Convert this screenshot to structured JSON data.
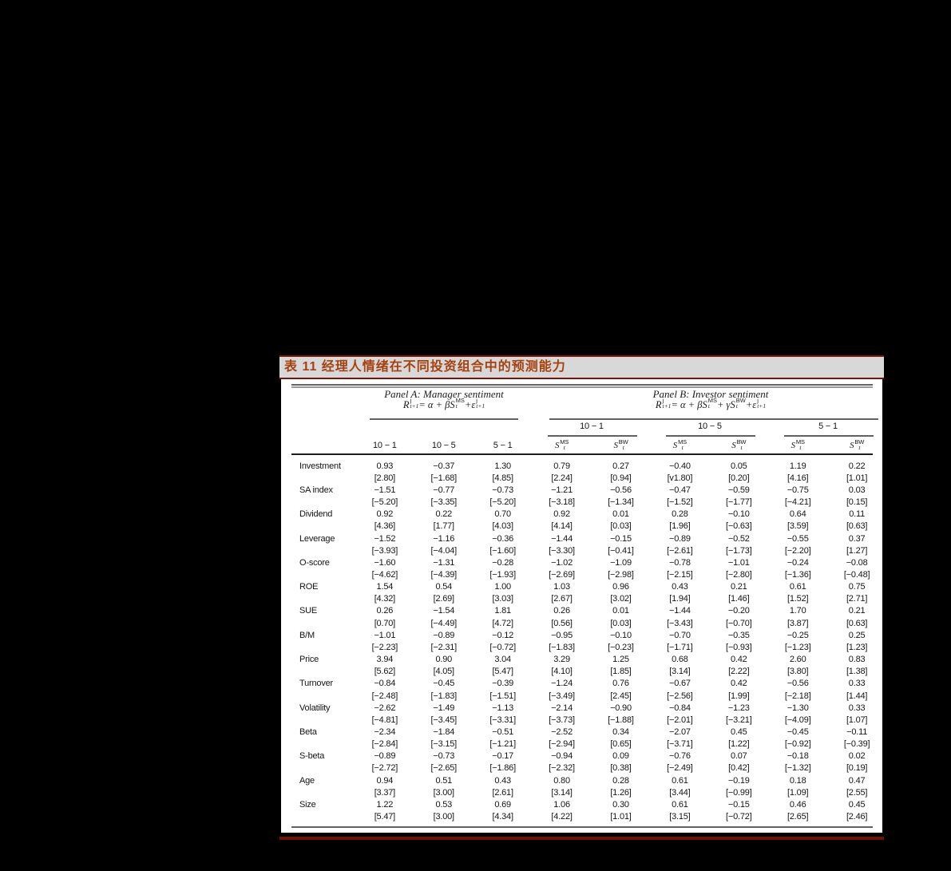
{
  "title_bar": {
    "text": "表 11 经理人情绪在不同投资组合中的预测能力"
  },
  "colors": {
    "page_background": "#000000",
    "title_bar_background": "#d8d8d8",
    "title_text": "#a5400f",
    "accent_red_border": "#7b150b",
    "bottom_bar": "#6e120b"
  },
  "table": {
    "header": {
      "panel_a": {
        "title": "Panel A: Manager sentiment",
        "formula": [
          {
            "base": "R",
            "sup": "j",
            "sub": "t+1"
          },
          {
            "text": " = α + β"
          },
          {
            "base": "S",
            "sup": "MS",
            "sub": "t"
          },
          {
            "text": " + "
          },
          {
            "base": "ε",
            "sup": "j",
            "sub": "t+1"
          }
        ],
        "columns": [
          "10 − 1",
          "10 − 5",
          "5 − 1"
        ]
      },
      "panel_b": {
        "title": "Panel B: Investor sentiment",
        "formula": [
          {
            "base": "R",
            "sup": "j",
            "sub": "t+1"
          },
          {
            "text": " = α + β"
          },
          {
            "base": "S",
            "sup": "MS",
            "sub": "t"
          },
          {
            "text": " + γ"
          },
          {
            "base": "S",
            "sup": "BW",
            "sub": "t"
          },
          {
            "text": " + "
          },
          {
            "base": "ε",
            "sup": "j",
            "sub": "t+1"
          }
        ],
        "groups": [
          {
            "label": "10 − 1",
            "sub_columns": [
              {
                "base": "S",
                "sup": "MS",
                "sub": "t"
              },
              {
                "base": "S",
                "sup": "BW",
                "sub": "t"
              }
            ]
          },
          {
            "label": "10 − 5",
            "sub_columns": [
              {
                "base": "S",
                "sup": "MS",
                "sub": "t"
              },
              {
                "base": "S",
                "sup": "BW",
                "sub": "t"
              }
            ]
          },
          {
            "label": "5 − 1",
            "sub_columns": [
              {
                "base": "S",
                "sup": "MS",
                "sub": "t"
              },
              {
                "base": "S",
                "sup": "BW",
                "sub": "t"
              }
            ]
          }
        ]
      }
    },
    "rows": [
      {
        "label": "Investment",
        "coefficients": [
          "0.93",
          "−0.37",
          "1.30",
          "0.79",
          "0.27",
          "−0.40",
          "0.05",
          "1.19",
          "0.22"
        ],
        "t_stats": [
          "[2.80]",
          "[−1.68]",
          "[4.85]",
          "[2.24]",
          "[0.94]",
          "[v1.80]",
          "[0.20]",
          "[4.16]",
          "[1.01]"
        ]
      },
      {
        "label": "SA index",
        "coefficients": [
          "−1.51",
          "−0.77",
          "−0.73",
          "−1.21",
          "−0.56",
          "−0.47",
          "−0.59",
          "−0.75",
          "0.03"
        ],
        "t_stats": [
          "[−5.20]",
          "[−3.35]",
          "[−5.20]",
          "[−3.18]",
          "[−1.34]",
          "[−1.52]",
          "[−1.77]",
          "[−4.21]",
          "[0.15]"
        ]
      },
      {
        "label": "Dividend",
        "coefficients": [
          "0.92",
          "0.22",
          "0.70",
          "0.92",
          "0.01",
          "0.28",
          "−0.10",
          "0.64",
          "0.11"
        ],
        "t_stats": [
          "[4.36]",
          "[1.77]",
          "[4.03]",
          "[4.14]",
          "[0.03]",
          "[1.96]",
          "[−0.63]",
          "[3.59]",
          "[0.63]"
        ]
      },
      {
        "label": "Leverage",
        "coefficients": [
          "−1.52",
          "−1.16",
          "−0.36",
          "−1.44",
          "−0.15",
          "−0.89",
          "−0.52",
          "−0.55",
          "0.37"
        ],
        "t_stats": [
          "[−3.93]",
          "[−4.04]",
          "[−1.60]",
          "[−3.30]",
          "[−0.41]",
          "[−2.61]",
          "[−1.73]",
          "[−2.20]",
          "[1.27]"
        ]
      },
      {
        "label": "O-score",
        "coefficients": [
          "−1.60",
          "−1.31",
          "−0.28",
          "−1.02",
          "−1.09",
          "−0.78",
          "−1.01",
          "−0.24",
          "−0.08"
        ],
        "t_stats": [
          "[−4.62]",
          "[−4.39]",
          "[−1.93]",
          "[−2.69]",
          "[−2.98]",
          "[−2.15]",
          "[−2.80]",
          "[−1.36]",
          "[−0.48]"
        ]
      },
      {
        "label": "ROE",
        "coefficients": [
          "1.54",
          "0.54",
          "1.00",
          "1.03",
          "0.96",
          "0.43",
          "0.21",
          "0.61",
          "0.75"
        ],
        "t_stats": [
          "[4.32]",
          "[2.69]",
          "[3.03]",
          "[2.67]",
          "[3.02]",
          "[1.94]",
          "[1.46]",
          "[1.52]",
          "[2.71]"
        ]
      },
      {
        "label": "SUE",
        "coefficients": [
          "0.26",
          "−1.54",
          "1.81",
          "0.26",
          "0.01",
          "−1.44",
          "−0.20",
          "1.70",
          "0.21"
        ],
        "t_stats": [
          "[0.70]",
          "[−4.49]",
          "[4.72]",
          "[0.56]",
          "[0.03]",
          "[−3.43]",
          "[−0.70]",
          "[3.87]",
          "[0.63]"
        ]
      },
      {
        "label": "B/M",
        "coefficients": [
          "−1.01",
          "−0.89",
          "−0.12",
          "−0.95",
          "−0.10",
          "−0.70",
          "−0.35",
          "−0.25",
          "0.25"
        ],
        "t_stats": [
          "[−2.23]",
          "[−2.31]",
          "[−0.72]",
          "[−1.83]",
          "[−0.23]",
          "[−1.71]",
          "[−0.93]",
          "[−1.23]",
          "[1.23]"
        ]
      },
      {
        "label": "Price",
        "coefficients": [
          "3.94",
          "0.90",
          "3.04",
          "3.29",
          "1.25",
          "0.68",
          "0.42",
          "2.60",
          "0.83"
        ],
        "t_stats": [
          "[5.62]",
          "[4.05]",
          "[5.47]",
          "[4.10]",
          "[1.85]",
          "[3.14]",
          "[2.22]",
          "[3.80]",
          "[1.38]"
        ]
      },
      {
        "label": "Turnover",
        "coefficients": [
          "−0.84",
          "−0.45",
          "−0.39",
          "−1.24",
          "0.76",
          "−0.67",
          "0.42",
          "−0.56",
          "0.33"
        ],
        "t_stats": [
          "[−2.48]",
          "[−1.83]",
          "[−1.51]",
          "[−3.49]",
          "[2.45]",
          "[−2.56]",
          "[1.99]",
          "[−2.18]",
          "[1.44]"
        ]
      },
      {
        "label": "Volatility",
        "coefficients": [
          "−2.62",
          "−1.49",
          "−1.13",
          "−2.14",
          "−0.90",
          "−0.84",
          "−1.23",
          "−1.30",
          "0.33"
        ],
        "t_stats": [
          "[−4.81]",
          "[−3.45]",
          "[−3.31]",
          "[−3.73]",
          "[−1.88]",
          "[−2.01]",
          "[−3.21]",
          "[−4.09]",
          "[1.07]"
        ]
      },
      {
        "label": "Beta",
        "coefficients": [
          "−2.34",
          "−1.84",
          "−0.51",
          "−2.52",
          "0.34",
          "−2.07",
          "0.45",
          "−0.45",
          "−0.11"
        ],
        "t_stats": [
          "[−2.84]",
          "[−3.15]",
          "[−1.21]",
          "[−2.94]",
          "[0.65]",
          "[−3.71]",
          "[1.22]",
          "[−0.92]",
          "[−0.39]"
        ]
      },
      {
        "label": "S-beta",
        "coefficients": [
          "−0.89",
          "−0.73",
          "−0.17",
          "−0.94",
          "0.09",
          "−0.76",
          "0.07",
          "−0.18",
          "0.02"
        ],
        "t_stats": [
          "[−2.72]",
          "[−2.65]",
          "[−1.86]",
          "[−2.32]",
          "[0.38]",
          "[−2.49]",
          "[0.42]",
          "[−1.32]",
          "[0.19]"
        ]
      },
      {
        "label": "Age",
        "coefficients": [
          "0.94",
          "0.51",
          "0.43",
          "0.80",
          "0.28",
          "0.61",
          "−0.19",
          "0.18",
          "0.47"
        ],
        "t_stats": [
          "[3.37]",
          "[3.00]",
          "[2.61]",
          "[3.14]",
          "[1.26]",
          "[3.44]",
          "[−0.99]",
          "[1.09]",
          "[2.55]"
        ]
      },
      {
        "label": "Size",
        "coefficients": [
          "1.22",
          "0.53",
          "0.69",
          "1.06",
          "0.30",
          "0.61",
          "−0.15",
          "0.46",
          "0.45"
        ],
        "t_stats": [
          "[5.47]",
          "[3.00]",
          "[4.34]",
          "[4.22]",
          "[1.01]",
          "[3.15]",
          "[−0.72]",
          "[2.65]",
          "[2.46]"
        ]
      }
    ]
  }
}
